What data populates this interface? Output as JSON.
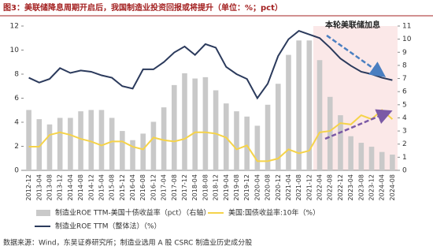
{
  "chart_data": {
    "type": "bar-line",
    "title": "图3：美联储降息周期开启后，我国制造业投资回报或将提升（单位：%；pct）",
    "annotation": "本轮美联储加息",
    "source": "数据来源：Wind，东吴证券研究所；制造业选用 A 股 CSRC 制造业历史成分股",
    "categories": [
      "2012-12",
      "2013-04",
      "2013-08",
      "2013-12",
      "2014-04",
      "2014-08",
      "2014-12",
      "2015-04",
      "2015-08",
      "2015-12",
      "2016-04",
      "2016-08",
      "2016-12",
      "2017-04",
      "2017-08",
      "2017-12",
      "2018-04",
      "2018-08",
      "2018-12",
      "2019-04",
      "2019-08",
      "2019-12",
      "2020-04",
      "2020-08",
      "2020-12",
      "2021-04",
      "2021-08",
      "2021-12",
      "2022-04",
      "2022-08",
      "2022-12",
      "2023-04",
      "2023-08",
      "2023-12",
      "2024-04",
      "2024-08"
    ],
    "ylim": [
      0,
      12
    ],
    "yticks": [
      0,
      2,
      4,
      6,
      8,
      10,
      12
    ],
    "y2lim": [
      0,
      11
    ],
    "y2ticks": [
      0,
      1,
      2,
      3,
      4,
      5,
      6,
      7,
      8,
      9,
      10,
      11
    ],
    "series": [
      {
        "name": "制造业ROE TTM-美国十债收益率（pct）（右轴）",
        "kind": "bar",
        "axis": "y2",
        "color": "#c9c9c9",
        "values": [
          4.6,
          3.9,
          3.5,
          4.0,
          4.0,
          4.5,
          4.6,
          4.6,
          4.0,
          3.0,
          2.3,
          2.8,
          3.7,
          4.8,
          6.5,
          7.4,
          7.0,
          7.1,
          6.1,
          5.1,
          4.5,
          4.1,
          3.4,
          5.0,
          6.6,
          8.8,
          9.9,
          9.9,
          8.4,
          5.6,
          4.2,
          2.6,
          2.1,
          1.8,
          1.4,
          1.2
        ]
      },
      {
        "name": "美国:国债收益率:10年（%）",
        "kind": "line",
        "axis": "y2",
        "color": "#f5d34a",
        "values": [
          1.8,
          1.8,
          2.7,
          2.9,
          2.7,
          2.4,
          2.2,
          1.9,
          2.2,
          2.2,
          1.8,
          1.6,
          2.5,
          2.3,
          2.2,
          2.4,
          2.9,
          2.9,
          2.8,
          2.5,
          1.6,
          1.9,
          0.7,
          0.7,
          0.9,
          1.6,
          1.3,
          1.5,
          2.9,
          3.0,
          3.6,
          3.5,
          4.2,
          3.9,
          4.6,
          3.9
        ]
      },
      {
        "name": "制造业ROE TTM（整体法）（%）",
        "kind": "line",
        "axis": "y",
        "color": "#2b3a5c",
        "values": [
          7.7,
          7.3,
          7.6,
          8.5,
          8.1,
          8.3,
          8.2,
          7.9,
          7.7,
          7.0,
          6.8,
          8.4,
          8.4,
          9.0,
          9.8,
          10.3,
          9.6,
          10.5,
          10.2,
          8.6,
          8.0,
          7.6,
          6.0,
          7.2,
          9.5,
          10.9,
          11.6,
          11.3,
          11.0,
          10.2,
          9.3,
          8.7,
          8.2,
          8.0,
          7.7,
          7.5
        ]
      }
    ]
  }
}
